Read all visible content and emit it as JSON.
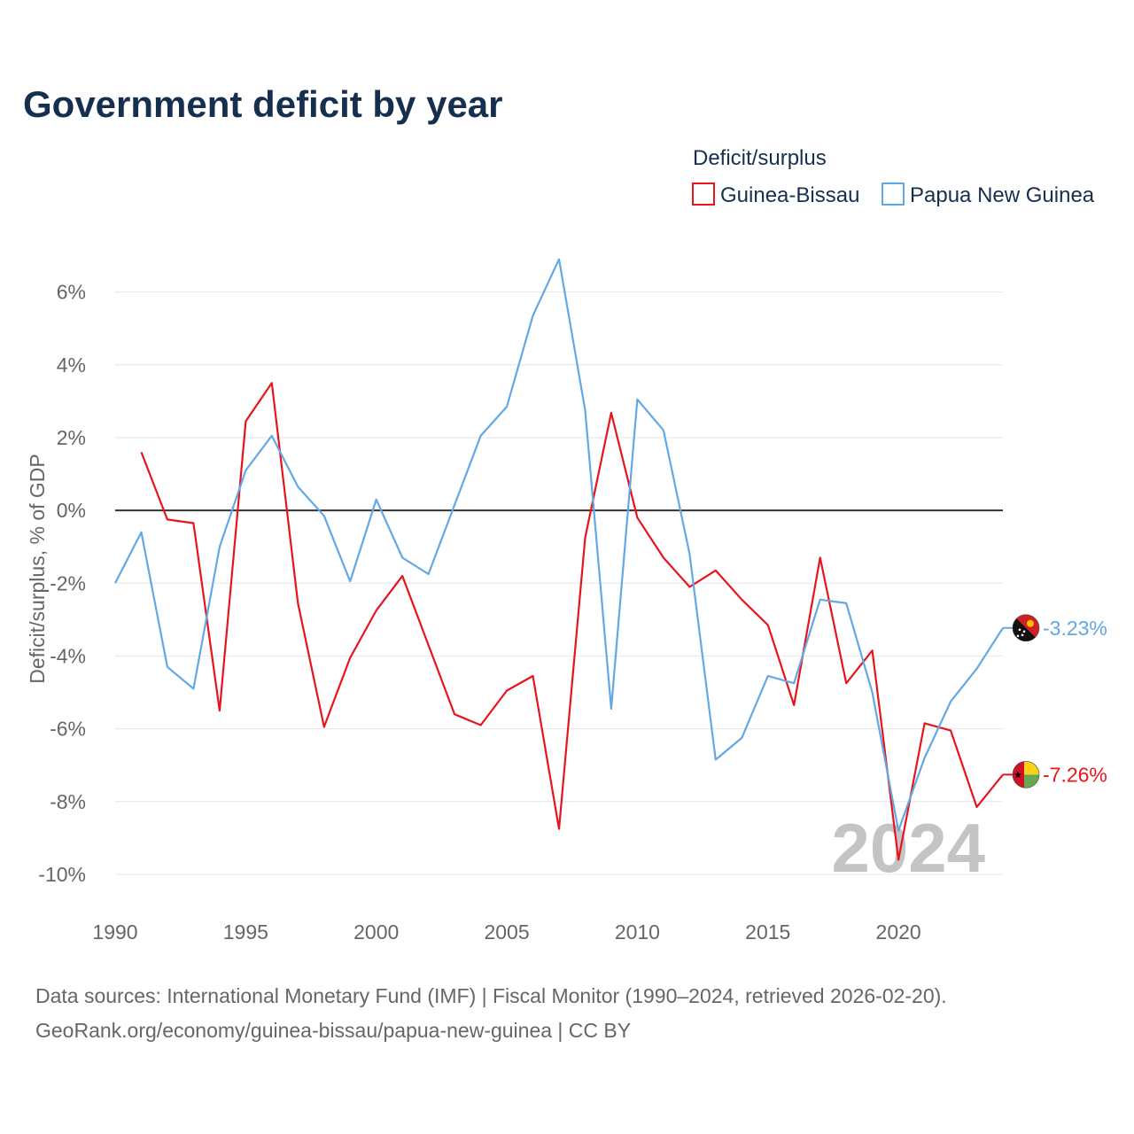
{
  "colors": {
    "guinea_bissau": "#e8141c",
    "papua_new_guinea": "#62a8e4",
    "title": "#172f4f",
    "grid": "#e6e6e6",
    "zero_line": "#333333",
    "muted_text": "#666666",
    "watermark": "#c4c4c4"
  },
  "chart_data": {
    "type": "line",
    "title": "Government deficit by year",
    "ylabel": "Deficit/surplus, % of GDP",
    "xlabel": "",
    "xlim": [
      1990,
      2024
    ],
    "ylim": [
      -11,
      7.5
    ],
    "x_ticks": [
      1990,
      1995,
      2000,
      2005,
      2010,
      2015,
      2020
    ],
    "y_ticks": [
      6,
      4,
      2,
      0,
      -2,
      -4,
      -6,
      -8,
      -10
    ],
    "y_tick_labels": [
      "6%",
      "4%",
      "2%",
      "0%",
      "-2%",
      "-4%",
      "-6%",
      "-8%",
      "-10%"
    ],
    "legend_title": "Deficit/surplus",
    "legend_position": "top-right",
    "watermark_year": "2024",
    "series": [
      {
        "name": "Guinea-Bissau",
        "color": "#e8141c",
        "end_label": "-7.26%",
        "x": [
          1991,
          1992,
          1993,
          1994,
          1995,
          1996,
          1997,
          1998,
          1999,
          2000,
          2001,
          2002,
          2003,
          2004,
          2005,
          2006,
          2007,
          2008,
          2009,
          2010,
          2011,
          2012,
          2013,
          2014,
          2015,
          2016,
          2017,
          2018,
          2019,
          2020,
          2021,
          2022,
          2023,
          2024
        ],
        "values": [
          1.6,
          -0.25,
          -0.35,
          -5.5,
          2.45,
          3.5,
          -2.55,
          -5.95,
          -4.05,
          -2.75,
          -1.8,
          -3.7,
          -5.6,
          -5.9,
          -4.95,
          -4.55,
          -8.75,
          -0.75,
          2.68,
          -0.2,
          -1.3,
          -2.1,
          -1.65,
          -2.45,
          -3.15,
          -5.35,
          -1.3,
          -4.75,
          -3.85,
          -9.6,
          -5.85,
          -6.05,
          -8.15,
          -7.26
        ]
      },
      {
        "name": "Papua New Guinea",
        "color": "#62a8e4",
        "end_label": "-3.23%",
        "x": [
          1990,
          1991,
          1992,
          1993,
          1994,
          1995,
          1996,
          1997,
          1998,
          1999,
          2000,
          2001,
          2002,
          2003,
          2004,
          2005,
          2006,
          2007,
          2008,
          2009,
          2010,
          2011,
          2012,
          2013,
          2014,
          2015,
          2016,
          2017,
          2018,
          2019,
          2020,
          2021,
          2022,
          2023,
          2024
        ],
        "values": [
          -2.0,
          -0.6,
          -4.3,
          -4.9,
          -1.0,
          1.1,
          2.05,
          0.65,
          -0.15,
          -1.95,
          0.3,
          -1.3,
          -1.75,
          0.15,
          2.05,
          2.85,
          5.35,
          6.9,
          2.75,
          -5.45,
          3.05,
          2.2,
          -1.2,
          -6.85,
          -6.25,
          -4.55,
          -4.75,
          -2.45,
          -2.55,
          -5.0,
          -8.8,
          -6.8,
          -5.25,
          -4.35,
          -3.23
        ]
      }
    ]
  },
  "footer": {
    "source_line1": "Data sources: International Monetary Fund (IMF) | Fiscal Monitor (1990–2024, retrieved 2026-02-20).",
    "source_line2": "GeoRank.org/economy/guinea-bissau/papua-new-guinea | CC BY"
  }
}
